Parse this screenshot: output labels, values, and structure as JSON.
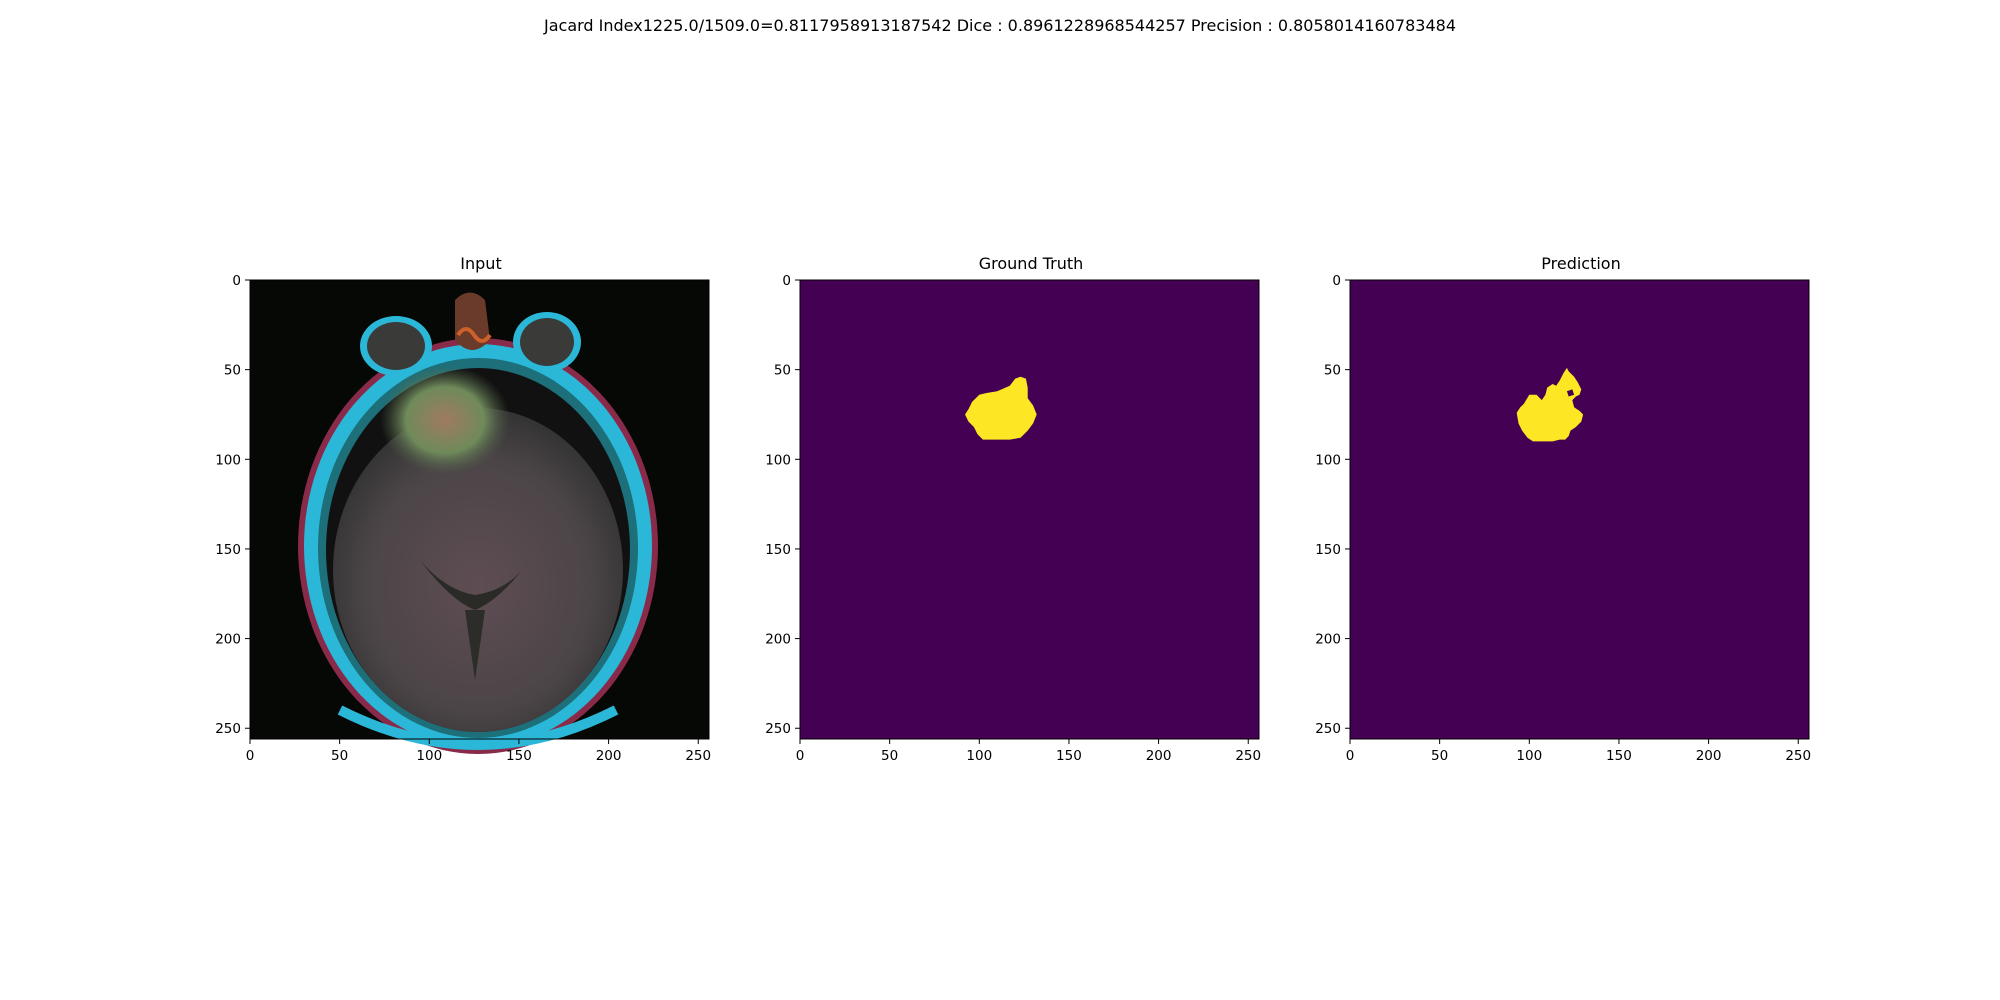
{
  "figure": {
    "suptitle": "Jacard Index1225.0/1509.0=0.8117958913187542 Dice : 0.8961228968544257 Precision : 0.8058014160783484"
  },
  "panels": [
    {
      "title": "Input"
    },
    {
      "title": "Ground Truth"
    },
    {
      "title": "Prediction"
    }
  ],
  "axes": {
    "x_ticks": [
      "0",
      "50",
      "100",
      "150",
      "200",
      "250"
    ],
    "y_ticks": [
      "0",
      "50",
      "100",
      "150",
      "200",
      "250"
    ],
    "range": [
      0,
      256
    ]
  },
  "colors": {
    "mask_background": "#440154",
    "mask_foreground": "#fde725",
    "scan_background": "#050805",
    "skull_cyan": "#2bb8d8",
    "brain_tissue": "#5a4a4e"
  },
  "masks": {
    "ground_truth_outline": [
      [
        96,
        68
      ],
      [
        100,
        64
      ],
      [
        104,
        63
      ],
      [
        110,
        62
      ],
      [
        117,
        59
      ],
      [
        120,
        55
      ],
      [
        123,
        54
      ],
      [
        126,
        55
      ],
      [
        127,
        60
      ],
      [
        127,
        66
      ],
      [
        130,
        70
      ],
      [
        132,
        75
      ],
      [
        130,
        80
      ],
      [
        127,
        84
      ],
      [
        123,
        88
      ],
      [
        117,
        89
      ],
      [
        110,
        89
      ],
      [
        105,
        89
      ],
      [
        102,
        89
      ],
      [
        99,
        86
      ],
      [
        97,
        82
      ],
      [
        94,
        79
      ],
      [
        92,
        75
      ],
      [
        94,
        72
      ]
    ],
    "prediction_outline": [
      [
        97,
        69
      ],
      [
        100,
        64
      ],
      [
        104,
        64
      ],
      [
        107,
        67
      ],
      [
        109,
        64
      ],
      [
        110,
        60
      ],
      [
        113,
        58
      ],
      [
        115,
        59
      ],
      [
        117,
        56
      ],
      [
        119,
        52
      ],
      [
        121,
        49
      ],
      [
        122,
        51
      ],
      [
        125,
        54
      ],
      [
        127,
        57
      ],
      [
        129,
        61
      ],
      [
        128,
        64
      ],
      [
        126,
        65
      ],
      [
        124,
        67
      ],
      [
        125,
        71
      ],
      [
        128,
        73
      ],
      [
        130,
        75
      ],
      [
        129,
        79
      ],
      [
        126,
        82
      ],
      [
        123,
        84
      ],
      [
        122,
        87
      ],
      [
        120,
        89
      ],
      [
        117,
        89
      ],
      [
        113,
        90
      ],
      [
        107,
        90
      ],
      [
        102,
        90
      ],
      [
        99,
        88
      ],
      [
        96,
        84
      ],
      [
        94,
        80
      ],
      [
        93,
        74
      ],
      [
        95,
        71
      ]
    ],
    "prediction_hole": [
      [
        121,
        62
      ],
      [
        124,
        61
      ],
      [
        125,
        64
      ],
      [
        122,
        65
      ]
    ]
  }
}
